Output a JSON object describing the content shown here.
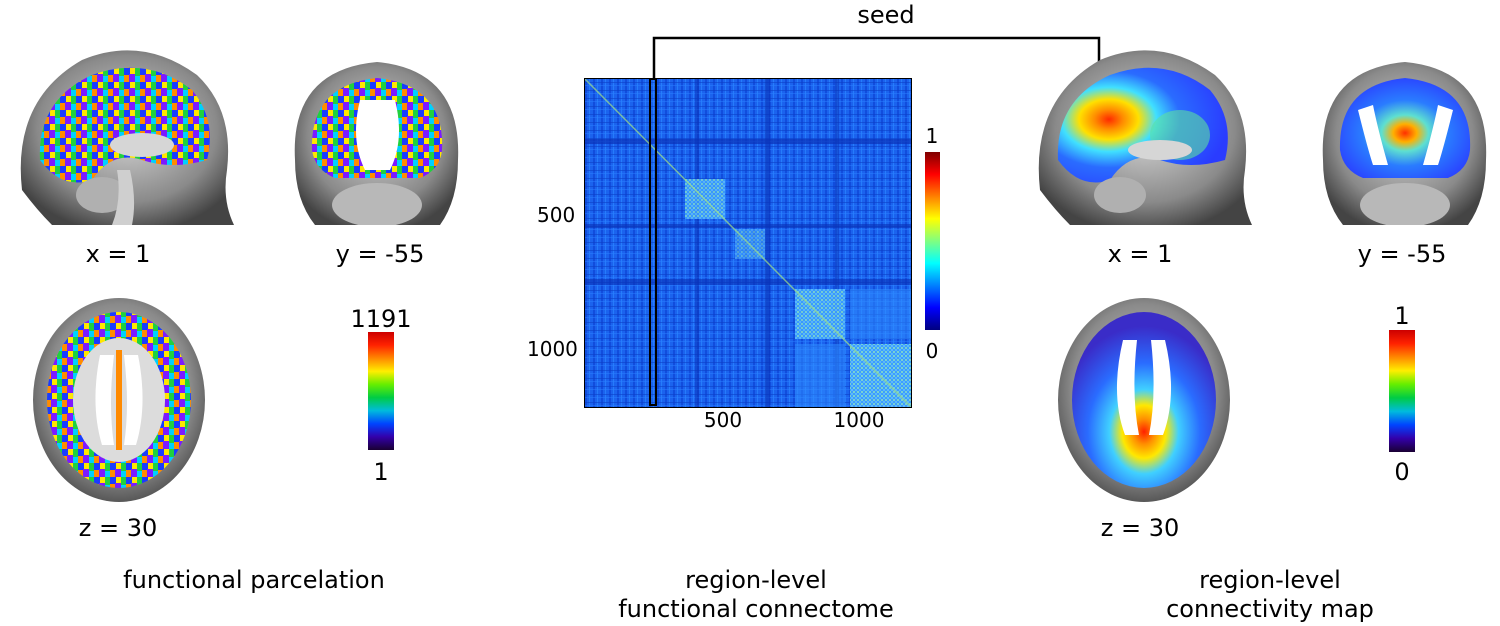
{
  "seed_label": "seed",
  "parcelation": {
    "sagittal_label": "x = 1",
    "coronal_label": "y = -55",
    "axial_label": "z = 30",
    "colorbar_max": "1191",
    "colorbar_min": "1",
    "caption": "functional parcelation"
  },
  "connectome": {
    "y_ticks": [
      "500",
      "1000"
    ],
    "x_ticks": [
      "500",
      "1000"
    ],
    "colorbar_max": "1",
    "colorbar_min": "0",
    "caption_line1": "region-level",
    "caption_line2": "functional connectome"
  },
  "connectivity_map": {
    "sagittal_label": "x = 1",
    "coronal_label": "y = -55",
    "axial_label": "z = 30",
    "colorbar_max": "1",
    "colorbar_min": "0",
    "caption_line1": "region-level",
    "caption_line2": "connectivity map"
  },
  "colors": {
    "jet": [
      "#00007f",
      "#0000ff",
      "#0080ff",
      "#00ffff",
      "#80ff80",
      "#ffff00",
      "#ff8000",
      "#ff0000",
      "#7f0000"
    ],
    "spectral": [
      "#1a0033",
      "#3300aa",
      "#0044ff",
      "#00bbdd",
      "#00cc44",
      "#66ee00",
      "#ffee00",
      "#ff8800",
      "#ff2200",
      "#cc0000"
    ],
    "matrix_bg": "#1a5ee8",
    "arrow": "#000000"
  }
}
